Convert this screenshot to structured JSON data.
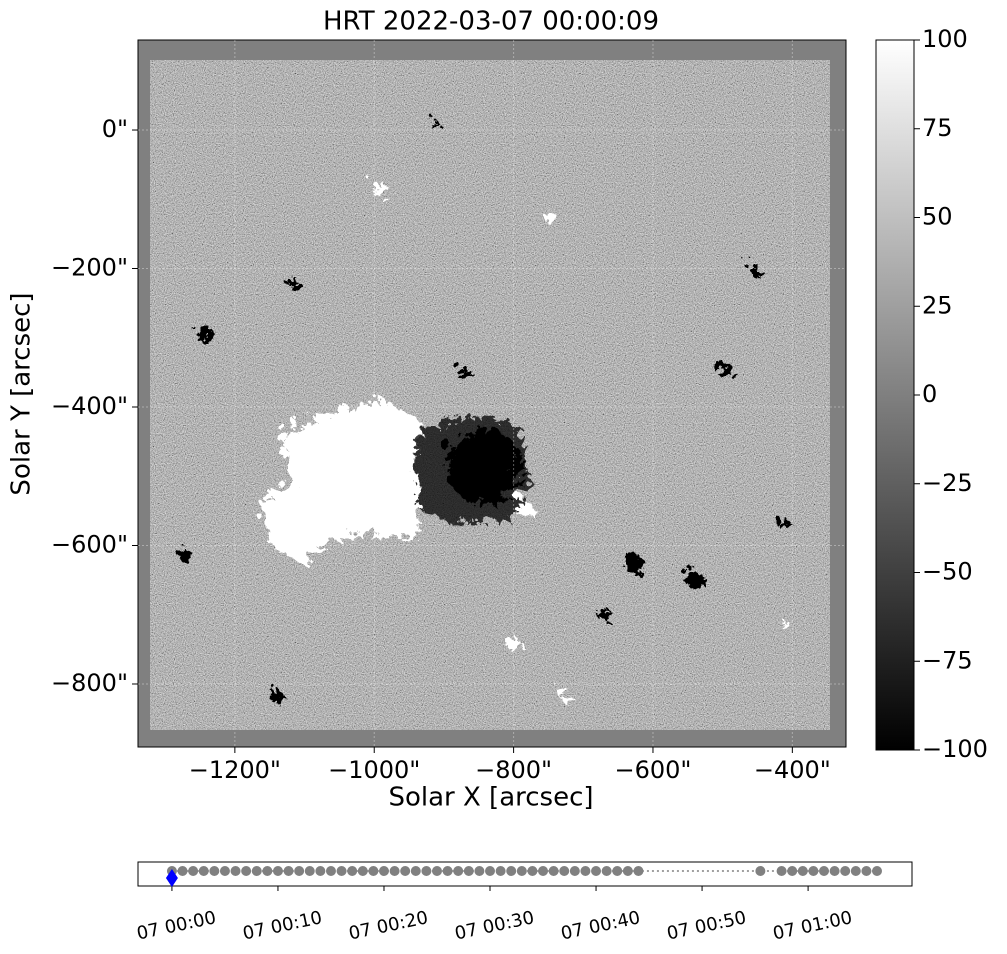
{
  "chart_data": [
    {
      "type": "image",
      "title": "HRT 2022-03-07 00:00:09",
      "xlabel": "Solar X [arcsec]",
      "ylabel": "Solar Y [arcsec]",
      "xlim": [
        -1339,
        -323
      ],
      "ylim": [
        -891,
        130
      ],
      "xticks": [
        {
          "value": -1200,
          "label": "−1200\""
        },
        {
          "value": -1000,
          "label": "−1000\""
        },
        {
          "value": -800,
          "label": "−800\""
        },
        {
          "value": -600,
          "label": "−600\""
        },
        {
          "value": -400,
          "label": "−400\""
        }
      ],
      "yticks": [
        {
          "value": -800,
          "label": "−800\""
        },
        {
          "value": -600,
          "label": "−600\""
        },
        {
          "value": -400,
          "label": "−400\""
        },
        {
          "value": -200,
          "label": "−200\""
        },
        {
          "value": 0,
          "label": "0\""
        }
      ],
      "grid": true,
      "colorbar": {
        "ylim": [
          -100,
          100
        ],
        "yticks": [
          {
            "value": -100,
            "label": "−100"
          },
          {
            "value": -75,
            "label": "−75"
          },
          {
            "value": -50,
            "label": "−50"
          },
          {
            "value": -25,
            "label": "−25"
          },
          0,
          25,
          50,
          75,
          100
        ],
        "colors": [
          "#000000",
          "#ffffff"
        ]
      }
    },
    {
      "type": "timeline",
      "xlim": [
        -3.2,
        69.8
      ],
      "xticks": [
        {
          "value": 0,
          "label": "07 00:00"
        },
        {
          "value": 10,
          "label": "07 00:10"
        },
        {
          "value": 20,
          "label": "07 00:20"
        },
        {
          "value": 30,
          "label": "07 00:30"
        },
        {
          "value": 40,
          "label": "07 00:40"
        },
        {
          "value": 50,
          "label": "07 00:50"
        },
        {
          "value": 60,
          "label": "07 01:00"
        }
      ],
      "series": [
        {
          "color": "#808080",
          "x": [
            0,
            1,
            2,
            3,
            4,
            5,
            6,
            7,
            8,
            9,
            10,
            11,
            12,
            13,
            14,
            15,
            16,
            17,
            18,
            19,
            20,
            21,
            22,
            23,
            24,
            25,
            26,
            27,
            28,
            29,
            30,
            31,
            32,
            33,
            34,
            35,
            36,
            37,
            38,
            39,
            40,
            41,
            42,
            43,
            44,
            55.5,
            57.5,
            58.5,
            59.5,
            60.5,
            61.5,
            62.5,
            63.5,
            64.5,
            65.5,
            66.5
          ]
        },
        {
          "color": "#0000ff",
          "x": [
            0
          ]
        }
      ]
    }
  ]
}
